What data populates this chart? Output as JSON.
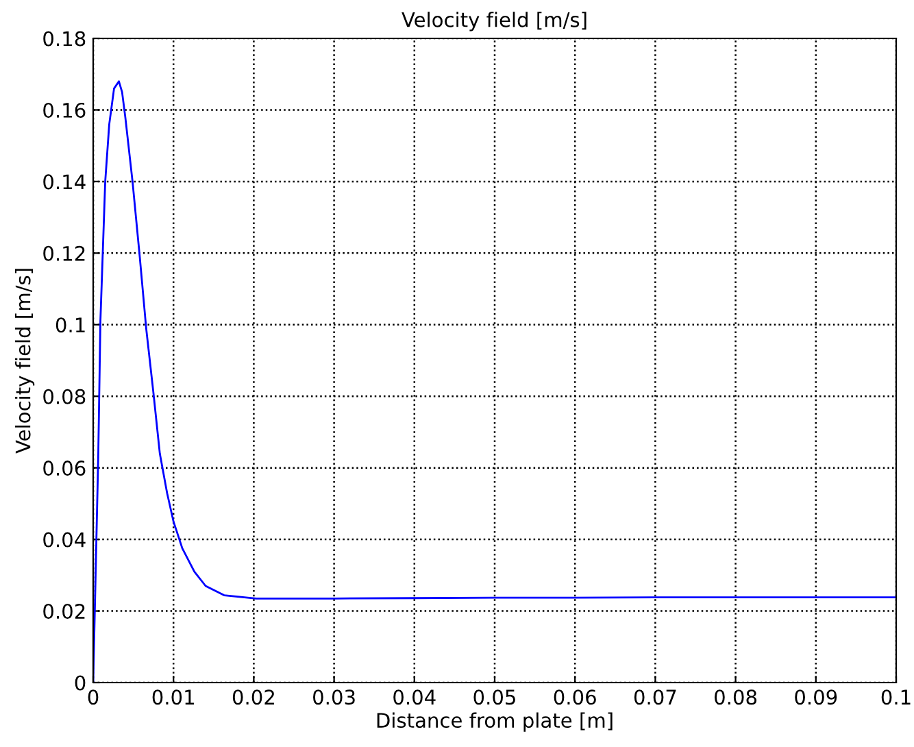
{
  "chart_data": {
    "type": "line",
    "title": "Velocity field [m/s]",
    "xlabel": "Distance from plate [m]",
    "ylabel": "Velocity field [m/s]",
    "series": [
      {
        "color": "#0000ff",
        "x": [
          0,
          0.0003,
          0.00063,
          0.0009,
          0.0015,
          0.002,
          0.0026,
          0.0032,
          0.0036,
          0.004,
          0.0049,
          0.0058,
          0.0066,
          0.0075,
          0.0083,
          0.0092,
          0.01,
          0.0111,
          0.0126,
          0.014,
          0.0163,
          0.0203,
          0.03,
          0.04,
          0.05,
          0.06,
          0.07,
          0.08,
          0.09,
          0.1
        ],
        "values": [
          0,
          0.03,
          0.063,
          0.101,
          0.14,
          0.156,
          0.166,
          0.168,
          0.165,
          0.158,
          0.14,
          0.119,
          0.099,
          0.081,
          0.064,
          0.053,
          0.045,
          0.0375,
          0.031,
          0.027,
          0.0244,
          0.0235,
          0.0235,
          0.0236,
          0.0237,
          0.0237,
          0.0238,
          0.0238,
          0.0238,
          0.0238
        ]
      }
    ],
    "xlim": [
      0,
      0.1
    ],
    "ylim": [
      0,
      0.18
    ],
    "xticks": [
      0,
      0.01,
      0.02,
      0.03,
      0.04,
      0.05,
      0.06,
      0.07,
      0.08,
      0.09,
      0.1
    ],
    "yticks": [
      0,
      0.02,
      0.04,
      0.06,
      0.08,
      0.1,
      0.12,
      0.14,
      0.16,
      0.18
    ],
    "grid": true,
    "line_style": "solid",
    "marker": "none"
  }
}
